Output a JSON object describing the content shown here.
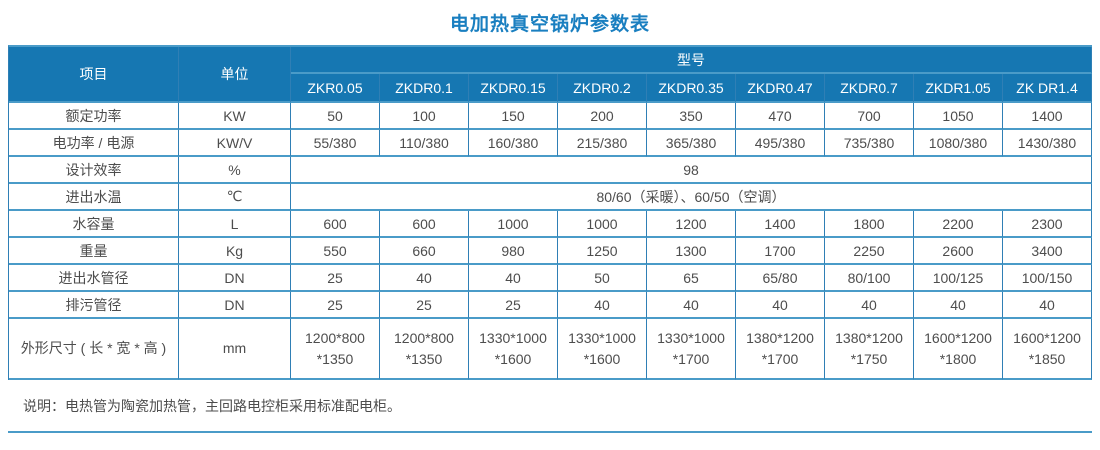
{
  "title": "电加热真空锅炉参数表",
  "colors": {
    "header_bg": "#1677b2",
    "border_horizontal": "#4a9bc8",
    "border_vertical": "#2f7fb5",
    "title_text": "#1a7fc0",
    "body_text": "#4d4d4d"
  },
  "table": {
    "header": {
      "item_label": "项目",
      "unit_label": "单位",
      "model_label": "型号",
      "models": [
        "ZKR0.05",
        "ZKDR0.1",
        "ZKDR0.15",
        "ZKDR0.2",
        "ZKDR0.35",
        "ZKDR0.47",
        "ZKDR0.7",
        "ZKDR1.05",
        "ZK DR1.4"
      ]
    },
    "rows": [
      {
        "item": "额定功率",
        "unit": "KW",
        "values": [
          "50",
          "100",
          "150",
          "200",
          "350",
          "470",
          "700",
          "1050",
          "1400"
        ]
      },
      {
        "item": "电功率 / 电源",
        "unit": "KW/V",
        "values": [
          "55/380",
          "110/380",
          "160/380",
          "215/380",
          "365/380",
          "495/380",
          "735/380",
          "1080/380",
          "1430/380"
        ]
      },
      {
        "item": "设计效率",
        "unit": "%",
        "span_value": "98"
      },
      {
        "item": "进出水温",
        "unit": "℃",
        "span_value": "80/60（采暖）、60/50（空调）"
      },
      {
        "item": "水容量",
        "unit": "L",
        "values": [
          "600",
          "600",
          "1000",
          "1000",
          "1200",
          "1400",
          "1800",
          "2200",
          "2300"
        ]
      },
      {
        "item": "重量",
        "unit": "Kg",
        "values": [
          "550",
          "660",
          "980",
          "1250",
          "1300",
          "1700",
          "2250",
          "2600",
          "3400"
        ]
      },
      {
        "item": "进出水管径",
        "unit": "DN",
        "values": [
          "25",
          "40",
          "40",
          "50",
          "65",
          "65/80",
          "80/100",
          "100/125",
          "100/150"
        ]
      },
      {
        "item": "排污管径",
        "unit": "DN",
        "values": [
          "25",
          "25",
          "25",
          "40",
          "40",
          "40",
          "40",
          "40",
          "40"
        ]
      },
      {
        "item": "外形尺寸 ( 长 * 宽 * 高 )",
        "unit": "mm",
        "tall": true,
        "values": [
          "1200*800\n*1350",
          "1200*800\n*1350",
          "1330*1000\n*1600",
          "1330*1000\n*1600",
          "1330*1000\n*1700",
          "1380*1200\n*1700",
          "1380*1200\n*1750",
          "1600*1200\n*1800",
          "1600*1200\n*1850"
        ]
      }
    ],
    "note": "说明：电热管为陶瓷加热管，主回路电控柜采用标准配电柜。"
  }
}
